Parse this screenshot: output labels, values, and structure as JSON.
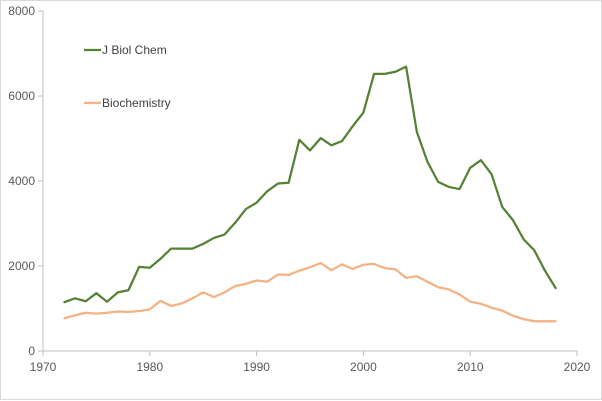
{
  "chart_data": {
    "type": "line",
    "title": "",
    "xlabel": "",
    "ylabel": "",
    "xlim": [
      1970,
      2020
    ],
    "ylim": [
      0,
      8000
    ],
    "x_ticks": [
      "1970",
      "1980",
      "1990",
      "2000",
      "2010",
      "2020"
    ],
    "y_ticks": [
      "0",
      "2000",
      "4000",
      "6000",
      "8000"
    ],
    "grid": false,
    "legend_position": "top-left",
    "x": [
      1972,
      1973,
      1974,
      1975,
      1976,
      1977,
      1978,
      1979,
      1980,
      1981,
      1982,
      1983,
      1984,
      1985,
      1986,
      1987,
      1988,
      1989,
      1990,
      1991,
      1992,
      1993,
      1994,
      1995,
      1996,
      1997,
      1998,
      1999,
      2000,
      2001,
      2002,
      2003,
      2004,
      2005,
      2006,
      2007,
      2008,
      2009,
      2010,
      2011,
      2012,
      2013,
      2014,
      2015,
      2016,
      2017,
      2018
    ],
    "series": [
      {
        "name": "J Biol Chem",
        "color": "#548235",
        "values": [
          1150,
          1240,
          1170,
          1360,
          1160,
          1380,
          1430,
          1980,
          1960,
          2170,
          2410,
          2410,
          2410,
          2520,
          2660,
          2740,
          3020,
          3340,
          3490,
          3760,
          3940,
          3960,
          4970,
          4720,
          5010,
          4840,
          4940,
          5290,
          5610,
          6520,
          6520,
          6570,
          6690,
          5160,
          4450,
          3980,
          3860,
          3810,
          4310,
          4490,
          4160,
          3390,
          3080,
          2630,
          2370,
          1890,
          1480
        ]
      },
      {
        "name": "Biochemistry",
        "color": "#f4b183",
        "values": [
          770,
          840,
          900,
          880,
          900,
          930,
          920,
          940,
          980,
          1180,
          1060,
          1120,
          1240,
          1380,
          1270,
          1380,
          1530,
          1580,
          1660,
          1630,
          1800,
          1790,
          1890,
          1970,
          2070,
          1900,
          2040,
          1930,
          2030,
          2050,
          1950,
          1920,
          1720,
          1760,
          1630,
          1500,
          1450,
          1330,
          1160,
          1110,
          1020,
          950,
          830,
          750,
          700,
          700,
          700
        ]
      }
    ]
  }
}
